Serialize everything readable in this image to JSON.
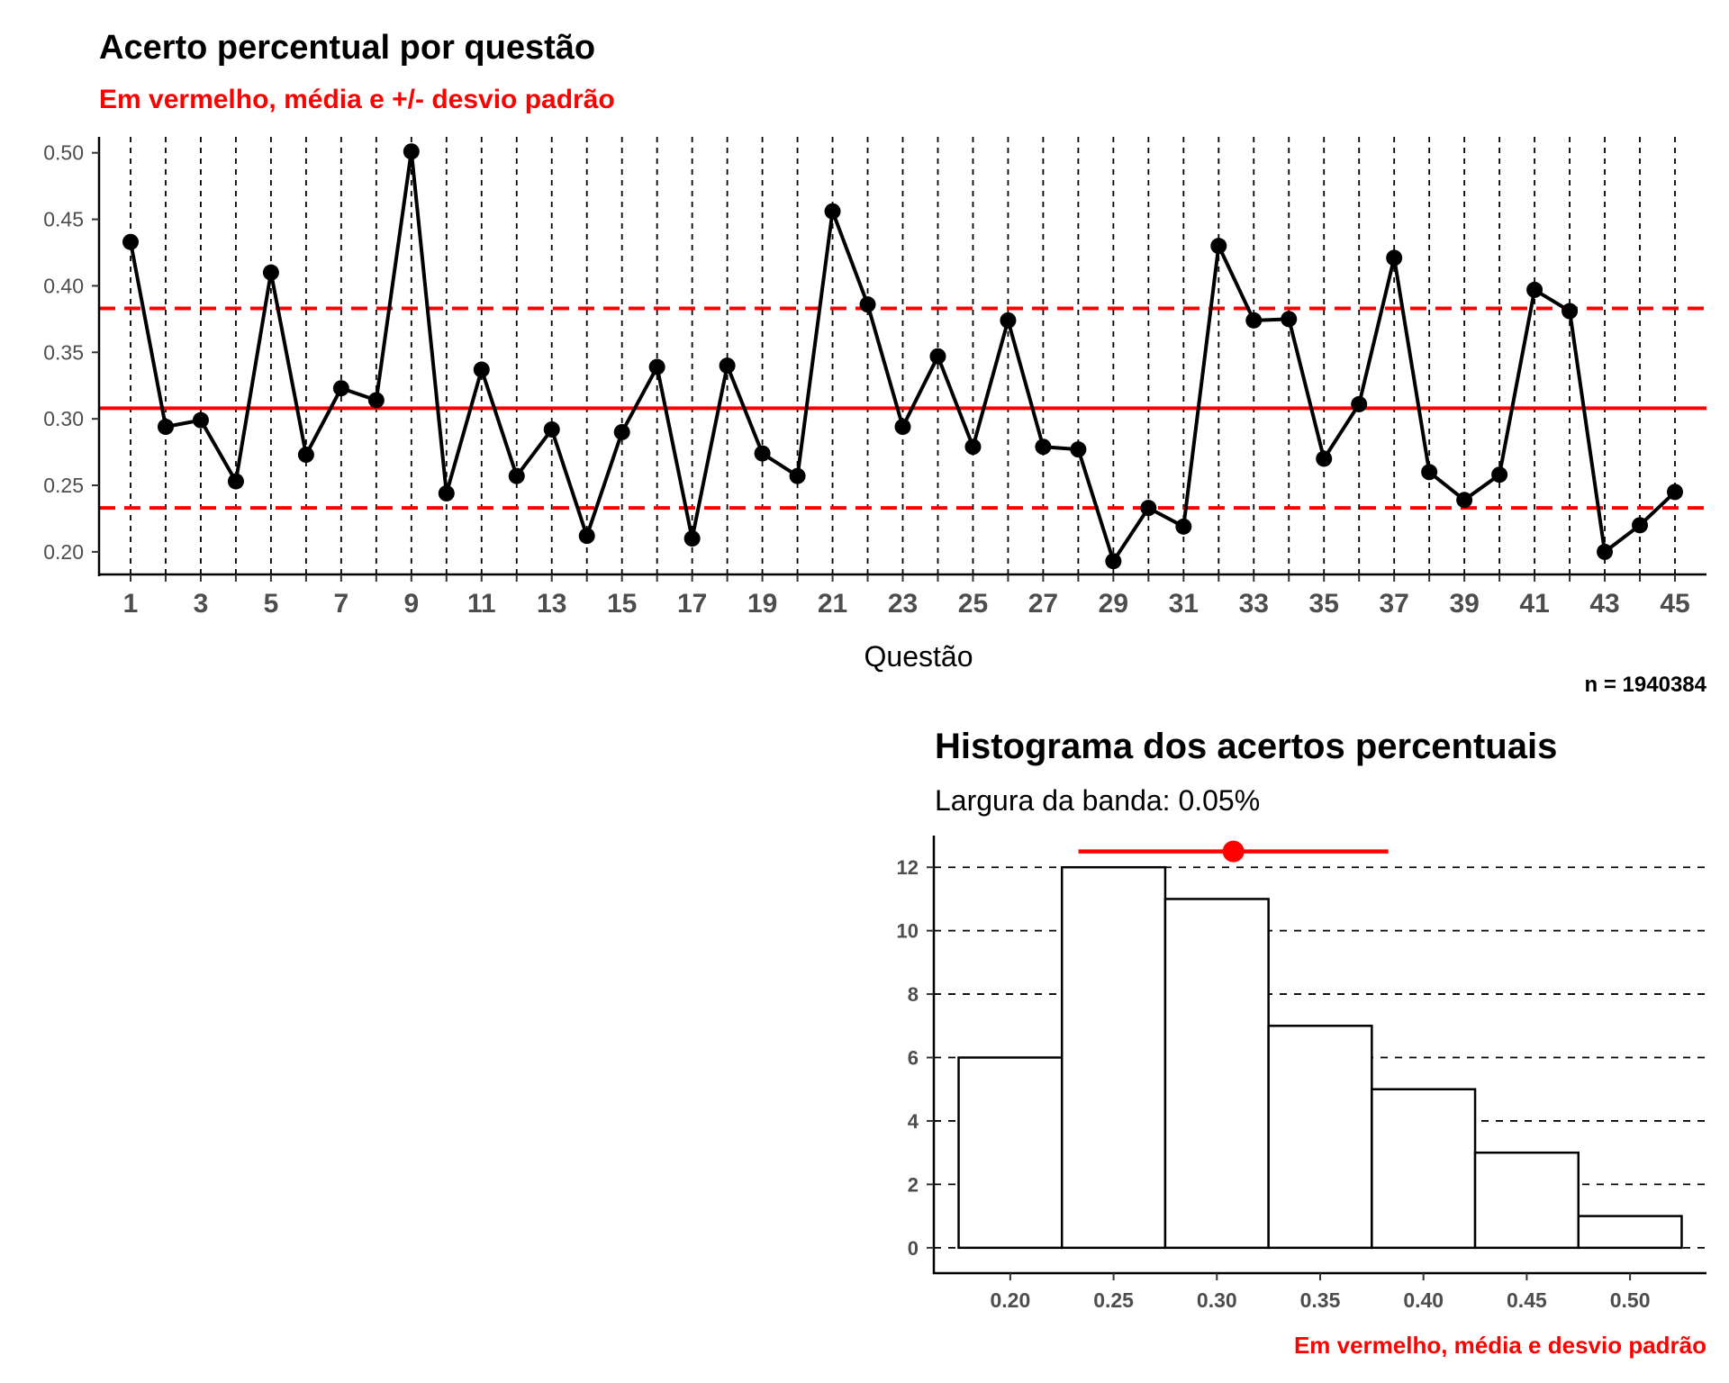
{
  "chart_data": [
    {
      "type": "line",
      "title": "Acerto percentual por questão",
      "subtitle": "Em vermelho, média e +/- desvio padrão",
      "xlabel": "Questão",
      "ylabel": "",
      "caption": "n = 1940384",
      "xlim": [
        1,
        45
      ],
      "ylim": [
        0.183,
        0.512
      ],
      "y_ticks": [
        "0.50",
        "0.45",
        "0.40",
        "0.35",
        "0.30",
        "0.25",
        "0.20"
      ],
      "x_ticks": [
        "1",
        "3",
        "5",
        "7",
        "9",
        "11",
        "13",
        "15",
        "17",
        "19",
        "21",
        "23",
        "25",
        "27",
        "29",
        "31",
        "33",
        "35",
        "37",
        "39",
        "41",
        "43",
        "45"
      ],
      "grid": "dashed vertical lines at each question",
      "x": [
        1,
        2,
        3,
        4,
        5,
        6,
        7,
        8,
        9,
        10,
        11,
        12,
        13,
        14,
        15,
        16,
        17,
        18,
        19,
        20,
        21,
        22,
        23,
        24,
        25,
        26,
        27,
        28,
        29,
        30,
        31,
        32,
        33,
        34,
        35,
        36,
        37,
        38,
        39,
        40,
        41,
        42,
        43,
        44,
        45
      ],
      "series": [
        {
          "values": [
            0.433,
            0.294,
            0.299,
            0.253,
            0.41,
            0.273,
            0.323,
            0.314,
            0.501,
            0.244,
            0.337,
            0.257,
            0.292,
            0.212,
            0.29,
            0.339,
            0.21,
            0.34,
            0.274,
            0.257,
            0.456,
            0.386,
            0.294,
            0.347,
            0.279,
            0.374,
            0.279,
            0.277,
            0.193,
            0.233,
            0.219,
            0.43,
            0.374,
            0.375,
            0.27,
            0.311,
            0.421,
            0.26,
            0.239,
            0.258,
            0.397,
            0.381,
            0.2,
            0.22,
            0.245
          ]
        }
      ],
      "mean": 0.308,
      "mean_minus_sd": 0.233,
      "mean_plus_sd": 0.383,
      "reference_color": "#ff0000",
      "line_color": "#000000"
    },
    {
      "type": "bar",
      "title": "Histograma dos acertos percentuais",
      "subtitle": "Largura da banda: 0.05%",
      "caption": "Em vermelho, média e desvio padrão",
      "xlabel": "",
      "ylabel": "",
      "bin_width": 0.05,
      "bin_centers": [
        0.2,
        0.25,
        0.3,
        0.35,
        0.4,
        0.45,
        0.5
      ],
      "values": [
        6,
        12,
        11,
        7,
        5,
        3,
        1
      ],
      "xlim": [
        0.163,
        0.537
      ],
      "ylim": [
        -0.8,
        13.0
      ],
      "x_ticks": [
        "0.20",
        "0.25",
        "0.30",
        "0.35",
        "0.40",
        "0.45",
        "0.50"
      ],
      "y_ticks": [
        "0",
        "2",
        "4",
        "6",
        "8",
        "10",
        "12"
      ],
      "grid": "dashed horizontal lines at y ticks",
      "mean": 0.308,
      "sd_range": [
        0.233,
        0.383
      ],
      "marker_y": 12.5,
      "reference_color": "#ff0000",
      "bar_fill": "#ffffff",
      "bar_stroke": "#000000"
    }
  ]
}
